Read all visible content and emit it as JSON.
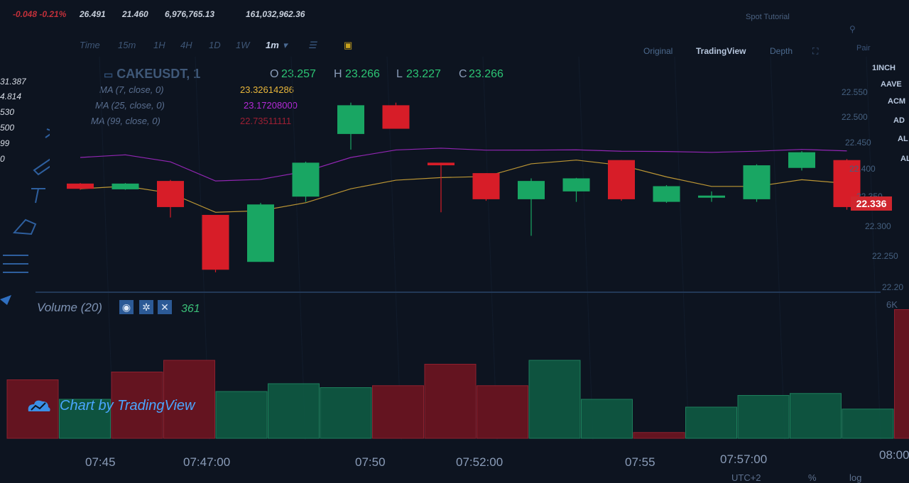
{
  "top_stats": {
    "change": "-0.048 -0.21%",
    "high": "26.491",
    "low": "21.460",
    "vol_cake": "6,976,765.13",
    "vol_usdt": "161,032,962.36"
  },
  "toolbar": {
    "timeframes": [
      "Time",
      "15m",
      "1H",
      "4H",
      "1D",
      "1W",
      "1m"
    ],
    "active_timeframe": "1m",
    "right_tabs": [
      "Original",
      "TradingView",
      "Depth"
    ],
    "active_right_tab": "TradingView",
    "spot_tutorial": "Spot Tutorial"
  },
  "left_prices": [
    "31.387",
    "4.814",
    "530",
    "500",
    "99",
    "0"
  ],
  "symbol": {
    "ticker": "CAKEUSDT, 1",
    "open": "23.257",
    "high": "23.266",
    "low": "23.227",
    "close": "23.266"
  },
  "ohlc_labels": {
    "o": "O",
    "h": "H",
    "l": "L",
    "c": "C"
  },
  "indicators": [
    {
      "label": "MA (7, close, 0)",
      "value": "23.32614286",
      "color": "#e8b63a"
    },
    {
      "label": "MA (25, close, 0)",
      "value": "23.17208000",
      "color": "#b42ad8"
    },
    {
      "label": "MA (99, close, 0)",
      "value": "22.73511111",
      "color": "#9c1f33"
    }
  ],
  "price_axis": [
    "22.550",
    "22.500",
    "22.450",
    "22.400",
    "22.350",
    "22.300",
    "22.250",
    "22.20"
  ],
  "current_price": "22.336",
  "right_symbols": [
    "1INCH",
    "AAVE",
    "ACM",
    "AD",
    "AL",
    "AL"
  ],
  "pair_label": "Pair",
  "volume": {
    "label": "Volume (20)",
    "value": "361",
    "axis_max": "6K"
  },
  "time_axis": [
    "07:45",
    "07:47:00",
    "07:50",
    "07:52:00",
    "07:55",
    "07:57:00",
    "08:00"
  ],
  "watermark": "Chart by TradingView",
  "bottom_right": {
    "utc": "UTC+2",
    "pct": "%",
    "log": "log"
  },
  "colors": {
    "up": "#19a663",
    "down": "#d71d28",
    "bg": "#0d1420",
    "accent": "#2c5a96"
  },
  "candles": [
    {
      "o": 22.405,
      "c": 22.395,
      "h": 22.406,
      "l": 22.393
    },
    {
      "o": 22.394,
      "c": 22.405,
      "h": 22.406,
      "l": 22.393
    },
    {
      "o": 22.41,
      "c": 22.36,
      "h": 22.412,
      "l": 22.34
    },
    {
      "o": 22.345,
      "c": 22.24,
      "h": 22.345,
      "l": 22.235
    },
    {
      "o": 22.255,
      "c": 22.365,
      "h": 22.368,
      "l": 22.255
    },
    {
      "o": 22.38,
      "c": 22.445,
      "h": 22.447,
      "l": 22.37
    },
    {
      "o": 22.5,
      "c": 22.555,
      "h": 22.56,
      "l": 22.47
    },
    {
      "o": 22.555,
      "c": 22.51,
      "h": 22.56,
      "l": 22.51
    },
    {
      "o": 22.445,
      "c": 22.44,
      "h": 22.445,
      "l": 22.35
    },
    {
      "o": 22.425,
      "c": 22.375,
      "h": 22.425,
      "l": 22.372
    },
    {
      "o": 22.375,
      "c": 22.41,
      "h": 22.415,
      "l": 22.305
    },
    {
      "o": 22.39,
      "c": 22.415,
      "h": 22.416,
      "l": 22.37
    },
    {
      "o": 22.45,
      "c": 22.375,
      "h": 22.45,
      "l": 22.372
    },
    {
      "o": 22.37,
      "c": 22.4,
      "h": 22.402,
      "l": 22.368
    },
    {
      "o": 22.38,
      "c": 22.382,
      "h": 22.39,
      "l": 22.37
    },
    {
      "o": 22.375,
      "c": 22.44,
      "h": 22.442,
      "l": 22.37
    },
    {
      "o": 22.435,
      "c": 22.465,
      "h": 22.467,
      "l": 22.43
    },
    {
      "o": 22.45,
      "c": 22.36,
      "h": 22.452,
      "l": 22.355
    }
  ],
  "volume_bars": [
    {
      "v": 1.5,
      "dir": "down"
    },
    {
      "v": 1.0,
      "dir": "up"
    },
    {
      "v": 1.7,
      "dir": "down"
    },
    {
      "v": 2.0,
      "dir": "down"
    },
    {
      "v": 1.2,
      "dir": "up"
    },
    {
      "v": 1.4,
      "dir": "up"
    },
    {
      "v": 1.3,
      "dir": "up"
    },
    {
      "v": 1.35,
      "dir": "down"
    },
    {
      "v": 1.9,
      "dir": "down"
    },
    {
      "v": 1.35,
      "dir": "down"
    },
    {
      "v": 2.0,
      "dir": "up"
    },
    {
      "v": 1.0,
      "dir": "up"
    },
    {
      "v": 0.15,
      "dir": "down"
    },
    {
      "v": 0.8,
      "dir": "up"
    },
    {
      "v": 1.1,
      "dir": "up"
    },
    {
      "v": 1.15,
      "dir": "up"
    },
    {
      "v": 0.75,
      "dir": "up"
    },
    {
      "v": 3.3,
      "dir": "down"
    }
  ]
}
